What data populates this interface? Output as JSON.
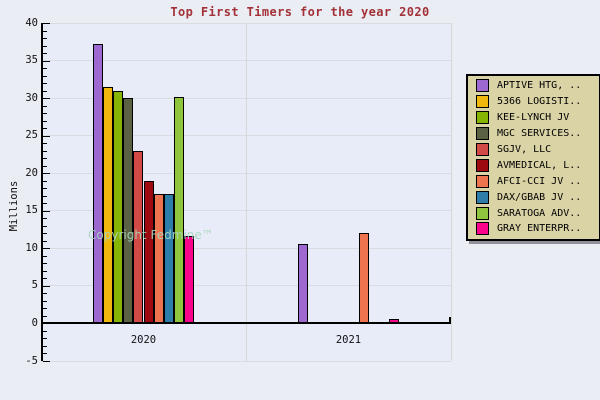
{
  "chart_data": {
    "type": "bar",
    "title": "Top First Timers for the year 2020",
    "ylabel": "Millions",
    "ylim": [
      -5,
      40
    ],
    "ytick_major_step": 5,
    "ytick_minor_step": 1,
    "grid": true,
    "legend_position": "right",
    "categories": [
      "2020",
      "2021"
    ],
    "series": [
      {
        "name": "APTIVE HTG, ..",
        "color": "#9d68d0",
        "values": [
          37.2,
          10.6
        ]
      },
      {
        "name": "5366 LOGISTI..",
        "color": "#f0b70d",
        "values": [
          31.5,
          0
        ]
      },
      {
        "name": "KEE-LYNCH JV",
        "color": "#87b504",
        "values": [
          31.0,
          0
        ]
      },
      {
        "name": "MGC SERVICES..",
        "color": "#5a6243",
        "values": [
          30.0,
          0
        ]
      },
      {
        "name": "SGJV, LLC",
        "color": "#d24a45",
        "values": [
          22.9,
          0
        ]
      },
      {
        "name": "AVMEDICAL, L..",
        "color": "#9d0b10",
        "values": [
          18.9,
          0.2
        ]
      },
      {
        "name": "AFCI-CCI JV ..",
        "color": "#ee7450",
        "values": [
          17.2,
          12.0
        ]
      },
      {
        "name": "DAX/GBAB JV ..",
        "color": "#2e7ca8",
        "values": [
          17.2,
          0
        ]
      },
      {
        "name": "SARATOGA ADV..",
        "color": "#90c63e",
        "values": [
          30.1,
          0
        ]
      },
      {
        "name": "GRAY ENTERPR..",
        "color": "#f9048a",
        "values": [
          11.6,
          0.6
        ]
      }
    ],
    "watermark": "Copyright Fedmine™",
    "colors": {
      "title": "#a23237",
      "plot_background": "#e8ecf8",
      "outer_background": "#eaedf4",
      "legend_background": "#d9d3a6",
      "gridline": "#d9dce1",
      "axis": "#000000"
    }
  }
}
